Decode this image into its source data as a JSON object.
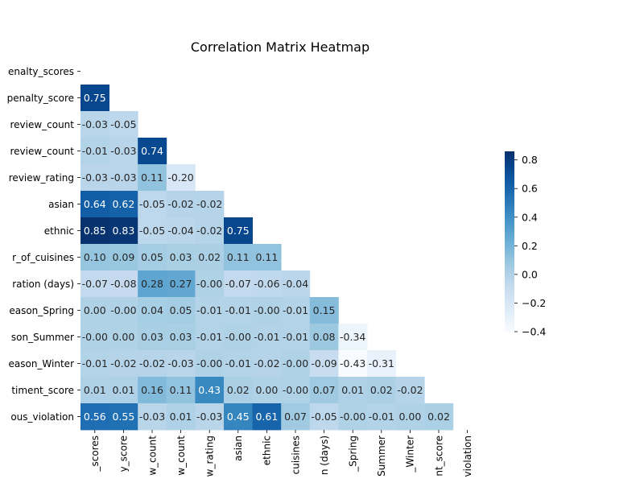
{
  "chart_data": {
    "type": "heatmap",
    "title": "Correlation Matrix Heatmap",
    "mask": "upper-triangle-and-diagonal",
    "colormap": "Blues",
    "color_range": [
      -0.4,
      0.86
    ],
    "colorbar_ticks": [
      "0.8",
      "0.6",
      "0.4",
      "0.2",
      "0.0",
      "−0.2",
      "−0.4"
    ],
    "colorbar_tick_values": [
      0.8,
      0.6,
      0.4,
      0.2,
      0.0,
      -0.2,
      -0.4
    ],
    "row_labels": [
      "enalty_scores",
      "penalty_score",
      "review_count",
      "review_count",
      "review_rating",
      "asian",
      "ethnic",
      "r_of_cuisines",
      "ration (days)",
      "eason_Spring",
      "son_Summer",
      "eason_Winter",
      "timent_score",
      "ous_violation"
    ],
    "col_labels": [
      "_scores",
      "y_score",
      "w_count",
      "w_count",
      "w_rating",
      "asian",
      "ethnic",
      "cuisines",
      "n (days)",
      "_Spring",
      "Summer",
      "_Winter",
      "nt_score",
      "violation"
    ],
    "values": [
      [],
      [
        0.75
      ],
      [
        -0.03,
        -0.05
      ],
      [
        -0.01,
        -0.03,
        0.74
      ],
      [
        -0.03,
        -0.03,
        0.11,
        -0.2
      ],
      [
        0.64,
        0.62,
        -0.05,
        -0.02,
        -0.02
      ],
      [
        0.85,
        0.83,
        -0.05,
        -0.04,
        -0.02,
        0.75
      ],
      [
        0.1,
        0.09,
        0.05,
        0.03,
        0.02,
        0.11,
        0.11
      ],
      [
        -0.07,
        -0.08,
        0.28,
        0.27,
        -0.0,
        -0.07,
        -0.06,
        -0.04
      ],
      [
        0.0,
        -0.0,
        0.04,
        0.05,
        -0.01,
        -0.01,
        -0.0,
        -0.01,
        0.15
      ],
      [
        -0.0,
        0.0,
        0.03,
        0.03,
        -0.01,
        -0.0,
        -0.01,
        -0.01,
        0.08,
        -0.34
      ],
      [
        -0.01,
        -0.02,
        -0.02,
        -0.03,
        -0.0,
        -0.01,
        -0.02,
        -0.0,
        -0.09,
        -0.43,
        -0.31
      ],
      [
        0.01,
        0.01,
        0.16,
        0.11,
        0.43,
        0.02,
        0.0,
        -0.0,
        0.07,
        0.01,
        0.02,
        -0.02
      ],
      [
        0.56,
        0.55,
        -0.03,
        0.01,
        -0.03,
        0.45,
        0.61,
        0.07,
        -0.05,
        -0.0,
        -0.01,
        0.0,
        0.02
      ]
    ],
    "cell_labels": [
      [],
      [
        "0.75"
      ],
      [
        "-0.03",
        "-0.05"
      ],
      [
        "-0.01",
        "-0.03",
        "0.74"
      ],
      [
        "-0.03",
        "-0.03",
        "0.11",
        "-0.20"
      ],
      [
        "0.64",
        "0.62",
        "-0.05",
        "-0.02",
        "-0.02"
      ],
      [
        "0.85",
        "0.83",
        "-0.05",
        "-0.04",
        "-0.02",
        "0.75"
      ],
      [
        "0.10",
        "0.09",
        "0.05",
        "0.03",
        "0.02",
        "0.11",
        "0.11"
      ],
      [
        "-0.07",
        "-0.08",
        "0.28",
        "0.27",
        "-0.00",
        "-0.07",
        "-0.06",
        "-0.04"
      ],
      [
        "0.00",
        "-0.00",
        "0.04",
        "0.05",
        "-0.01",
        "-0.01",
        "-0.00",
        "-0.01",
        "0.15"
      ],
      [
        "-0.00",
        "0.00",
        "0.03",
        "0.03",
        "-0.01",
        "-0.00",
        "-0.01",
        "-0.01",
        "0.08",
        "-0.34"
      ],
      [
        "-0.01",
        "-0.02",
        "-0.02",
        "-0.03",
        "-0.00",
        "-0.01",
        "-0.02",
        "-0.00",
        "-0.09",
        "-0.43",
        "-0.31"
      ],
      [
        "0.01",
        "0.01",
        "0.16",
        "0.11",
        "0.43",
        "0.02",
        "0.00",
        "-0.00",
        "0.07",
        "0.01",
        "0.02",
        "-0.02"
      ],
      [
        "0.56",
        "0.55",
        "-0.03",
        "0.01",
        "-0.03",
        "0.45",
        "0.61",
        "0.07",
        "-0.05",
        "-0.00",
        "-0.01",
        "0.00",
        "0.02"
      ]
    ]
  }
}
